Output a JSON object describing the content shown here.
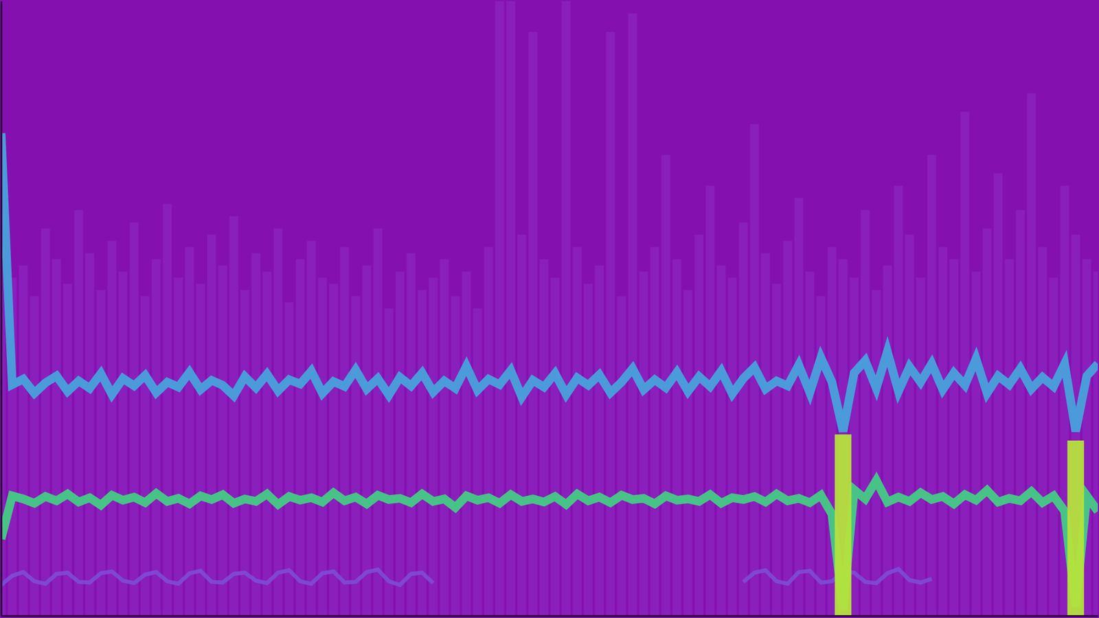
{
  "chart_data": {
    "type": "line",
    "tick_labels": false,
    "xlim": [
      0,
      99
    ],
    "ylim": [
      0,
      100
    ],
    "x": [
      0,
      1,
      2,
      3,
      4,
      5,
      6,
      7,
      8,
      9,
      10,
      11,
      12,
      13,
      14,
      15,
      16,
      17,
      18,
      19,
      20,
      21,
      22,
      23,
      24,
      25,
      26,
      27,
      28,
      29,
      30,
      31,
      32,
      33,
      34,
      35,
      36,
      37,
      38,
      39,
      40,
      41,
      42,
      43,
      44,
      45,
      46,
      47,
      48,
      49,
      50,
      51,
      52,
      53,
      54,
      55,
      56,
      57,
      58,
      59,
      60,
      61,
      62,
      63,
      64,
      65,
      66,
      67,
      68,
      69,
      70,
      71,
      72,
      73,
      74,
      75,
      76,
      77,
      78,
      79,
      80,
      81,
      82,
      83,
      84,
      85,
      86,
      87,
      88,
      89,
      90,
      91,
      92,
      93,
      94,
      95,
      96,
      97,
      98,
      99
    ],
    "series": [
      {
        "type": "bar",
        "color": "#8f2ec6",
        "values": [
          60,
          55,
          57,
          52,
          63,
          58,
          54,
          66,
          59,
          53,
          61,
          56,
          64,
          52,
          58,
          67,
          55,
          60,
          54,
          62,
          57,
          65,
          53,
          59,
          56,
          63,
          51,
          58,
          61,
          55,
          54,
          60,
          52,
          57,
          63,
          50,
          56,
          59,
          53,
          55,
          58,
          52,
          56,
          50,
          60,
          100,
          100,
          62,
          95,
          58,
          55,
          100,
          60,
          54,
          57,
          95,
          52,
          98,
          56,
          60,
          75,
          58,
          53,
          62,
          70,
          57,
          55,
          64,
          80,
          59,
          54,
          61,
          68,
          56,
          52,
          60,
          58,
          55,
          66,
          53,
          57,
          70,
          62,
          55,
          75,
          60,
          58,
          82,
          56,
          63,
          72,
          58,
          66,
          85,
          60,
          55,
          70,
          62,
          58,
          56
        ]
      },
      {
        "type": "line",
        "color": "#7a52dc",
        "values": [
          5.0,
          6.5,
          7.1,
          5.6,
          5.2,
          6.8,
          7.0,
          5.5,
          5.4,
          6.9,
          7.2,
          5.7,
          5.3,
          6.7,
          7.1,
          5.6,
          5.2,
          6.9,
          7.3,
          5.5,
          5.4,
          6.8,
          7.0,
          5.7,
          5.3,
          7.0,
          7.4,
          5.6,
          5.2,
          6.9,
          7.2,
          5.4,
          5.5,
          7.1,
          7.5,
          5.6,
          5.0,
          6.8,
          7.0,
          5.3,
          null,
          null,
          null,
          null,
          null,
          null,
          null,
          null,
          null,
          null,
          null,
          null,
          null,
          null,
          null,
          null,
          null,
          null,
          null,
          null,
          null,
          null,
          null,
          null,
          null,
          null,
          null,
          5.5,
          7.0,
          7.4,
          5.6,
          5.2,
          7.1,
          7.3,
          5.4,
          5.6,
          7.2,
          7.0,
          5.5,
          5.3,
          6.9,
          7.6,
          5.8,
          5.4,
          6.0,
          null,
          null,
          null,
          null,
          null,
          null,
          null,
          null,
          null,
          null,
          null,
          null,
          null,
          null,
          null
        ]
      },
      {
        "type": "line",
        "color": "#45cc85",
        "values": [
          12.5,
          19.5,
          19.0,
          18.3,
          19.4,
          18.7,
          19.8,
          18.5,
          19.2,
          18.0,
          19.6,
          18.8,
          19.3,
          18.4,
          19.9,
          18.6,
          19.1,
          18.2,
          19.5,
          18.9,
          19.7,
          18.3,
          19.0,
          18.6,
          19.8,
          18.1,
          19.4,
          18.8,
          19.2,
          18.5,
          20.0,
          18.7,
          19.3,
          18.2,
          19.6,
          18.9,
          19.1,
          18.4,
          19.8,
          18.6,
          19.0,
          17.6,
          19.5,
          18.8,
          19.2,
          18.3,
          19.7,
          18.6,
          19.0,
          18.5,
          19.4,
          18.1,
          19.8,
          18.7,
          19.3,
          18.4,
          19.6,
          18.9,
          19.1,
          18.2,
          19.5,
          18.8,
          19.0,
          18.6,
          19.7,
          18.3,
          19.2,
          18.9,
          19.4,
          18.5,
          19.8,
          18.7,
          19.1,
          18.4,
          19.6,
          16.5,
          1.0,
          20.5,
          19.0,
          22.0,
          18.5,
          19.3,
          18.6,
          20.0,
          18.9,
          19.4,
          18.2,
          19.7,
          18.8,
          20.4,
          18.5,
          19.1,
          18.7,
          20.2,
          18.4,
          19.5,
          17.0,
          1.5,
          19.5,
          17.0
        ]
      },
      {
        "type": "line",
        "color": "#48a2dc",
        "values": [
          78.5,
          37.6,
          38.5,
          36.2,
          37.9,
          39.0,
          36.5,
          38.2,
          37.0,
          39.4,
          36.0,
          38.6,
          37.4,
          39.1,
          36.3,
          38.0,
          37.2,
          39.6,
          36.8,
          38.3,
          37.5,
          35.8,
          38.9,
          37.1,
          39.3,
          36.6,
          38.4,
          37.7,
          39.8,
          36.2,
          38.1,
          37.3,
          40.0,
          36.9,
          38.6,
          35.9,
          38.8,
          37.4,
          39.5,
          36.4,
          38.2,
          37.0,
          40.6,
          36.7,
          38.5,
          37.6,
          39.9,
          35.6,
          38.3,
          37.2,
          39.4,
          36.0,
          38.7,
          37.5,
          39.2,
          36.3,
          38.0,
          40.2,
          36.8,
          38.4,
          37.1,
          39.6,
          36.5,
          38.9,
          37.3,
          39.8,
          36.1,
          38.6,
          40.4,
          36.9,
          38.2,
          37.4,
          40.8,
          36.3,
          42.0,
          38.0,
          30.0,
          39.5,
          41.5,
          37.0,
          43.0,
          36.5,
          40.5,
          38.0,
          41.0,
          36.8,
          39.5,
          37.5,
          41.8,
          36.2,
          39.0,
          37.6,
          40.2,
          36.9,
          38.8,
          37.3,
          41.0,
          30.0,
          39.0,
          41.0
        ]
      },
      {
        "type": "bar",
        "color": "#b5e33c",
        "values": [
          null,
          null,
          null,
          null,
          null,
          null,
          null,
          null,
          null,
          null,
          null,
          null,
          null,
          null,
          null,
          null,
          null,
          null,
          null,
          null,
          null,
          null,
          null,
          null,
          null,
          null,
          null,
          null,
          null,
          null,
          null,
          null,
          null,
          null,
          null,
          null,
          null,
          null,
          null,
          null,
          null,
          null,
          null,
          null,
          null,
          null,
          null,
          null,
          null,
          null,
          null,
          null,
          null,
          null,
          null,
          null,
          null,
          null,
          null,
          null,
          null,
          null,
          null,
          null,
          null,
          null,
          null,
          null,
          null,
          null,
          null,
          null,
          null,
          null,
          null,
          null,
          29.5,
          null,
          null,
          null,
          null,
          null,
          null,
          null,
          null,
          null,
          null,
          null,
          null,
          null,
          null,
          null,
          null,
          null,
          null,
          null,
          null,
          28.5,
          null,
          null
        ]
      }
    ]
  }
}
